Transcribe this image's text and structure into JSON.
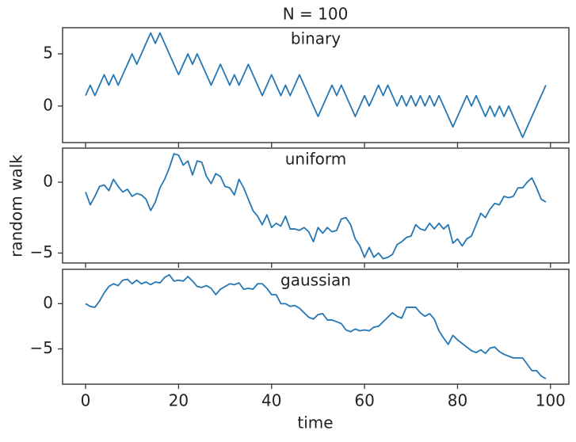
{
  "title": "N = 100",
  "xlabel": "time",
  "ylabel": "random walk",
  "chart_data": [
    {
      "type": "line",
      "title": "binary",
      "color": "#2477b4",
      "x": [
        0,
        1,
        2,
        3,
        4,
        5,
        6,
        7,
        8,
        9,
        10,
        11,
        12,
        13,
        14,
        15,
        16,
        17,
        18,
        19,
        20,
        21,
        22,
        23,
        24,
        25,
        26,
        27,
        28,
        29,
        30,
        31,
        32,
        33,
        34,
        35,
        36,
        37,
        38,
        39,
        40,
        41,
        42,
        43,
        44,
        45,
        46,
        47,
        48,
        49,
        50,
        51,
        52,
        53,
        54,
        55,
        56,
        57,
        58,
        59,
        60,
        61,
        62,
        63,
        64,
        65,
        66,
        67,
        68,
        69,
        70,
        71,
        72,
        73,
        74,
        75,
        76,
        77,
        78,
        79,
        80,
        81,
        82,
        83,
        84,
        85,
        86,
        87,
        88,
        89,
        90,
        91,
        92,
        93,
        94,
        95,
        96,
        97,
        98,
        99
      ],
      "values": [
        1,
        2,
        1,
        2,
        3,
        2,
        3,
        2,
        3,
        4,
        5,
        4,
        5,
        6,
        7,
        6,
        7,
        6,
        5,
        4,
        3,
        4,
        5,
        4,
        5,
        4,
        3,
        2,
        3,
        4,
        3,
        2,
        3,
        2,
        3,
        4,
        3,
        2,
        1,
        2,
        3,
        2,
        1,
        2,
        1,
        2,
        3,
        2,
        1,
        0,
        -1,
        0,
        1,
        2,
        1,
        2,
        1,
        0,
        -1,
        0,
        1,
        0,
        1,
        2,
        1,
        2,
        1,
        0,
        1,
        0,
        1,
        0,
        1,
        0,
        1,
        0,
        1,
        0,
        -1,
        -2,
        -1,
        0,
        1,
        0,
        1,
        0,
        -1,
        0,
        -1,
        0,
        -1,
        0,
        -1,
        -2,
        -3,
        -2,
        -1,
        0,
        1,
        2
      ],
      "xlim": [
        -4.95,
        103.95
      ],
      "ylim": [
        -3.5,
        7.5
      ],
      "yticks": [
        0,
        5
      ]
    },
    {
      "type": "line",
      "title": "uniform",
      "color": "#2477b4",
      "x": [
        0,
        1,
        2,
        3,
        4,
        5,
        6,
        7,
        8,
        9,
        10,
        11,
        12,
        13,
        14,
        15,
        16,
        17,
        18,
        19,
        20,
        21,
        22,
        23,
        24,
        25,
        26,
        27,
        28,
        29,
        30,
        31,
        32,
        33,
        34,
        35,
        36,
        37,
        38,
        39,
        40,
        41,
        42,
        43,
        44,
        45,
        46,
        47,
        48,
        49,
        50,
        51,
        52,
        53,
        54,
        55,
        56,
        57,
        58,
        59,
        60,
        61,
        62,
        63,
        64,
        65,
        66,
        67,
        68,
        69,
        70,
        71,
        72,
        73,
        74,
        75,
        76,
        77,
        78,
        79,
        80,
        81,
        82,
        83,
        84,
        85,
        86,
        87,
        88,
        89,
        90,
        91,
        92,
        93,
        94,
        95,
        96,
        97,
        98,
        99
      ],
      "values": [
        -0.7,
        -1.6,
        -1.0,
        -0.3,
        -0.2,
        -0.6,
        0.2,
        -0.3,
        -0.7,
        -0.5,
        -1.0,
        -0.8,
        -0.9,
        -1.2,
        -2.0,
        -1.4,
        -0.4,
        0.2,
        1.0,
        2.0,
        1.9,
        1.2,
        1.5,
        0.5,
        1.5,
        1.4,
        0.4,
        -0.1,
        0.6,
        0.4,
        -0.3,
        -0.4,
        -0.9,
        0.2,
        -0.4,
        -1.2,
        -2.0,
        -2.4,
        -3.0,
        -2.3,
        -3.2,
        -2.9,
        -3.1,
        -2.4,
        -3.3,
        -3.3,
        -3.4,
        -3.2,
        -3.5,
        -4.2,
        -3.2,
        -3.6,
        -3.2,
        -3.5,
        -3.4,
        -2.6,
        -2.5,
        -3.0,
        -4.0,
        -4.5,
        -5.3,
        -4.6,
        -5.3,
        -5.0,
        -5.4,
        -5.3,
        -5.1,
        -4.4,
        -4.2,
        -3.9,
        -3.8,
        -3.0,
        -3.3,
        -3.4,
        -2.9,
        -3.3,
        -2.9,
        -3.3,
        -3.0,
        -4.3,
        -4.0,
        -4.5,
        -4.0,
        -3.8,
        -3.0,
        -2.2,
        -2.5,
        -1.9,
        -1.5,
        -1.6,
        -1.0,
        -1.1,
        -1.0,
        -0.4,
        -0.4,
        0.0,
        0.3,
        -0.4,
        -1.2,
        -1.4
      ],
      "xlim": [
        -4.95,
        103.95
      ],
      "ylim": [
        -5.7,
        2.4
      ],
      "yticks": [
        {
          "value": -5,
          "label": "−5"
        },
        0
      ]
    },
    {
      "type": "line",
      "title": "gaussian",
      "color": "#2477b4",
      "x": [
        0,
        1,
        2,
        3,
        4,
        5,
        6,
        7,
        8,
        9,
        10,
        11,
        12,
        13,
        14,
        15,
        16,
        17,
        18,
        19,
        20,
        21,
        22,
        23,
        24,
        25,
        26,
        27,
        28,
        29,
        30,
        31,
        32,
        33,
        34,
        35,
        36,
        37,
        38,
        39,
        40,
        41,
        42,
        43,
        44,
        45,
        46,
        47,
        48,
        49,
        50,
        51,
        52,
        53,
        54,
        55,
        56,
        57,
        58,
        59,
        60,
        61,
        62,
        63,
        64,
        65,
        66,
        67,
        68,
        69,
        70,
        71,
        72,
        73,
        74,
        75,
        76,
        77,
        78,
        79,
        80,
        81,
        82,
        83,
        84,
        85,
        86,
        87,
        88,
        89,
        90,
        91,
        92,
        93,
        94,
        95,
        96,
        97,
        98,
        99
      ],
      "values": [
        0,
        -0.3,
        -0.4,
        0.3,
        1.2,
        1.9,
        2.2,
        2.0,
        2.6,
        2.7,
        2.2,
        2.6,
        2.2,
        2.4,
        2.1,
        2.4,
        2.3,
        2.9,
        3.2,
        2.5,
        2.6,
        2.5,
        3.0,
        2.5,
        1.9,
        1.8,
        2.0,
        1.7,
        1.0,
        1.6,
        1.9,
        2.2,
        2.1,
        2.3,
        1.6,
        1.7,
        1.6,
        2.2,
        2.2,
        1.7,
        1.0,
        1.0,
        0.0,
        0.0,
        -0.3,
        -0.2,
        -0.5,
        -1.0,
        -1.5,
        -1.7,
        -1.2,
        -1.1,
        -1.8,
        -1.8,
        -2.0,
        -2.2,
        -2.9,
        -3.1,
        -2.8,
        -3.0,
        -2.9,
        -3.0,
        -2.6,
        -2.5,
        -2.0,
        -1.5,
        -1.0,
        -1.4,
        -1.6,
        -0.4,
        -0.4,
        -0.4,
        -1.0,
        -1.4,
        -1.1,
        -1.7,
        -3.0,
        -3.8,
        -4.5,
        -3.5,
        -4.0,
        -4.4,
        -4.8,
        -5.2,
        -5.4,
        -5.1,
        -5.5,
        -4.9,
        -4.8,
        -5.3,
        -5.6,
        -5.8,
        -6.0,
        -6.0,
        -6.0,
        -6.7,
        -7.4,
        -7.4,
        -8.0,
        -8.3
      ],
      "xlim": [
        -4.95,
        103.95
      ],
      "ylim": [
        -8.9,
        3.8
      ],
      "yticks": [
        {
          "value": -5,
          "label": "−5"
        },
        0
      ],
      "xticks": [
        0,
        20,
        40,
        60,
        80,
        100
      ]
    }
  ]
}
